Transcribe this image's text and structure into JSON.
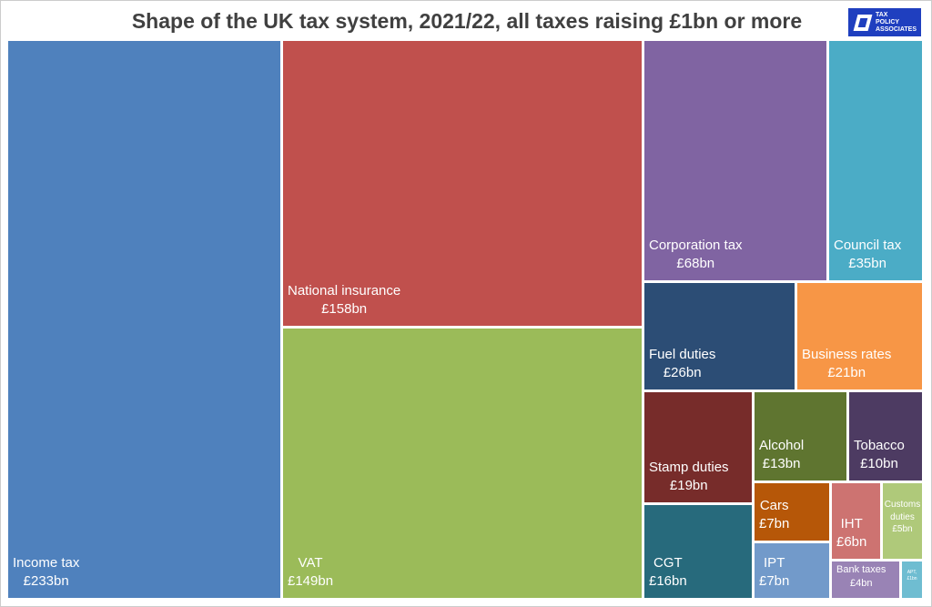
{
  "chart_data": {
    "type": "treemap",
    "title": "Shape of the UK tax system, 2021/22, all taxes raising £1bn or more",
    "unit": "£bn",
    "items": [
      {
        "name": "Income tax",
        "label": "£233bn",
        "value": 233,
        "color": "#4f81bd"
      },
      {
        "name": "National insurance",
        "label": "£158bn",
        "value": 158,
        "color": "#c0504d"
      },
      {
        "name": "VAT",
        "label": "£149bn",
        "value": 149,
        "color": "#9bbb59"
      },
      {
        "name": "Corporation tax",
        "label": "£68bn",
        "value": 68,
        "color": "#8064a2"
      },
      {
        "name": "Council tax",
        "label": "£35bn",
        "value": 35,
        "color": "#4bacc6"
      },
      {
        "name": "Fuel duties",
        "label": "£26bn",
        "value": 26,
        "color": "#2c4d75"
      },
      {
        "name": "Business rates",
        "label": "£21bn",
        "value": 21,
        "color": "#f79646"
      },
      {
        "name": "Stamp duties",
        "label": "£19bn",
        "value": 19,
        "color": "#772c2a"
      },
      {
        "name": "CGT",
        "label": "£16bn",
        "value": 16,
        "color": "#276a7c"
      },
      {
        "name": "Alcohol",
        "label": "£13bn",
        "value": 13,
        "color": "#5f7530"
      },
      {
        "name": "Tobacco",
        "label": "£10bn",
        "value": 10,
        "color": "#4d3b62"
      },
      {
        "name": "Cars",
        "label": "£7bn",
        "value": 7,
        "color": "#b65708"
      },
      {
        "name": "IPT",
        "label": "£7bn",
        "value": 7,
        "color": "#729aca"
      },
      {
        "name": "IHT",
        "label": "£6bn",
        "value": 6,
        "color": "#cd7371"
      },
      {
        "name": "Customs duties",
        "label": "£5bn",
        "value": 5,
        "color": "#afc97a"
      },
      {
        "name": "Bank taxes",
        "label": "£4bn",
        "value": 4,
        "color": "#9983b5"
      },
      {
        "name": "APT,",
        "label": "£1bn",
        "value": 1,
        "color": "#6fbdd1"
      }
    ]
  },
  "logo": {
    "lines": [
      "TAX",
      "POLICY",
      "ASSOCIATES"
    ]
  }
}
